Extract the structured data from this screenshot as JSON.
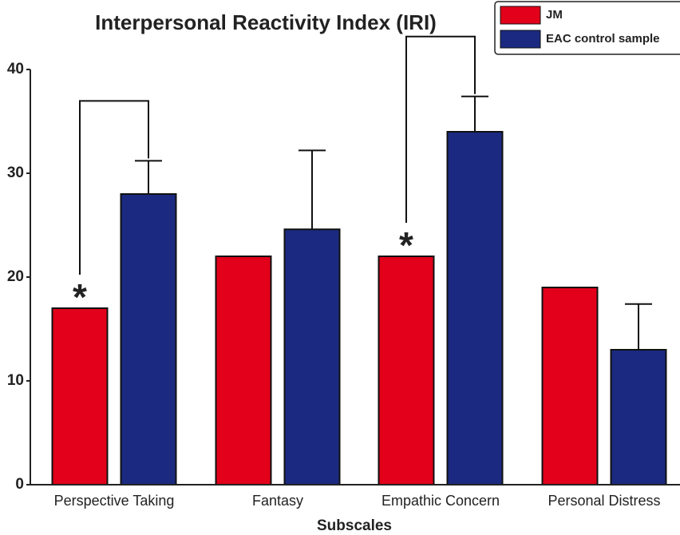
{
  "chart_data": {
    "type": "bar",
    "title": "Interpersonal Reactivity Index (IRI)",
    "x_label": "Subscales",
    "categories": [
      "Perspective Taking",
      "Fantasy",
      "Empathic Concern",
      "Personal Distress"
    ],
    "series": [
      {
        "name": "JM",
        "color": "#e2001a",
        "values": [
          17,
          22,
          22,
          19
        ]
      },
      {
        "name": "EAC control sample",
        "color": "#1b2a80",
        "values": [
          28,
          24.6,
          34,
          13
        ],
        "errors": [
          3.2,
          7.6,
          3.4,
          4.4
        ]
      }
    ],
    "annotations": [
      {
        "text": "*",
        "category": "Perspective Taking"
      },
      {
        "text": "*",
        "category": "Empathic Concern"
      }
    ],
    "ylim": [
      0,
      40
    ],
    "yticks": [
      0,
      10,
      20,
      30,
      40
    ],
    "legend": "top-right"
  }
}
